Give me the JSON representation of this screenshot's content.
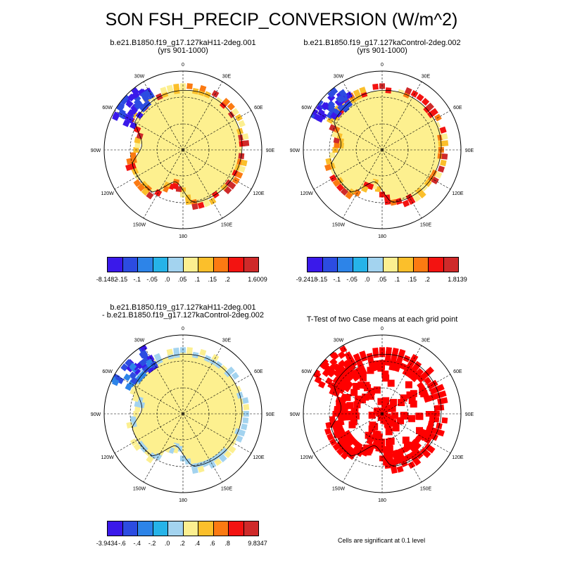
{
  "title": "SON FSH_PRECIP_CONVERSION (W/m^2)",
  "lon_labels": [
    "0",
    "30E",
    "60E",
    "90E",
    "120E",
    "150E",
    "180",
    "150W",
    "120W",
    "90W",
    "60W",
    "30W"
  ],
  "colors": {
    "palette": [
      "#3a19ea",
      "#2c4ce1",
      "#2d84e8",
      "#26b3e8",
      "#a3d3ef",
      "#fcef90",
      "#fbbf2b",
      "#fb7a12",
      "#f31311",
      "#cf2a2a"
    ],
    "significant": "#ff0000",
    "land": "#fdf08f"
  },
  "panels": [
    {
      "id": "case1",
      "title_lines": [
        "b.e21.B1850.f19_g17.127kaH11-2deg.001",
        "(yrs 901-1000)"
      ],
      "colorbar": {
        "labels": [
          "-8.1482",
          "-.15",
          "-.1",
          "-.05",
          ".0",
          ".05",
          ".1",
          ".15",
          ".2",
          "1.6009"
        ]
      }
    },
    {
      "id": "case2",
      "title_lines": [
        "b.e21.B1850.f19_g17.127kaControl-2deg.002",
        "(yrs 901-1000)"
      ],
      "colorbar": {
        "labels": [
          "-9.2418",
          "-.15",
          "-.1",
          "-.05",
          ".0",
          ".05",
          ".1",
          ".15",
          ".2",
          "1.8139"
        ]
      }
    },
    {
      "id": "diff",
      "title_lines": [
        "b.e21.B1850.f19_g17.127kaH11-2deg.001",
        "- b.e21.B1850.f19_g17.127kaControl-2deg.002"
      ],
      "colorbar": {
        "labels": [
          "-3.9434",
          "-.6",
          "-.4",
          "-.2",
          ".0",
          ".2",
          ".4",
          ".6",
          ".8",
          "9.8347"
        ]
      }
    },
    {
      "id": "ttest",
      "title_lines": [
        "T-Test of two Case means at each grid point"
      ],
      "note": "Cells are significant at 0.1 level"
    }
  ]
}
